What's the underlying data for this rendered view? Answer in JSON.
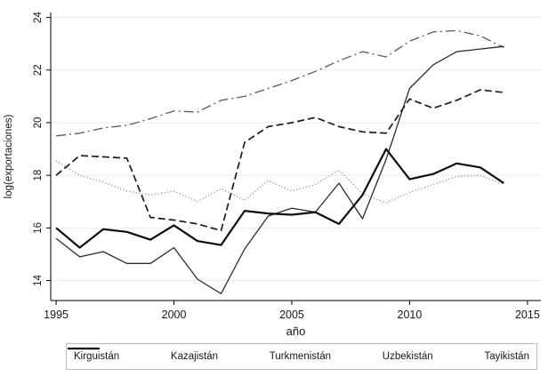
{
  "chart_data": {
    "type": "line",
    "title": "",
    "xlabel": "año",
    "ylabel": "log(exportaciones)",
    "x": [
      1995,
      1996,
      1997,
      1998,
      1999,
      2000,
      2001,
      2002,
      2003,
      2004,
      2005,
      2006,
      2007,
      2008,
      2009,
      2010,
      2011,
      2012,
      2013,
      2014
    ],
    "x_ticks": [
      1995,
      2000,
      2005,
      2010,
      2015
    ],
    "y_ticks": [
      14,
      16,
      18,
      20,
      22,
      24
    ],
    "x_range": [
      1994.77,
      2015.57
    ],
    "y_range": [
      13.24,
      24.19
    ],
    "grid": true,
    "legend_position": "bottom",
    "series": [
      {
        "name": "Kirguistán",
        "line": "dotted",
        "color": "#8c8c8c",
        "dash": "1 2.6",
        "width": 1.5,
        "values": [
          18.55,
          18.0,
          17.75,
          17.4,
          17.25,
          17.4,
          17.0,
          17.5,
          17.05,
          17.8,
          17.4,
          17.65,
          18.2,
          17.3,
          16.95,
          17.35,
          17.65,
          17.95,
          18.0,
          17.65
        ]
      },
      {
        "name": "Kazajistán",
        "line": "dash-dot",
        "color": "#5a5a5a",
        "dash": "11 4 2 4",
        "width": 1.3,
        "values": [
          19.5,
          19.6,
          19.8,
          19.9,
          20.15,
          20.45,
          20.4,
          20.85,
          21.0,
          21.3,
          21.6,
          21.95,
          22.35,
          22.7,
          22.5,
          23.1,
          23.45,
          23.5,
          23.3,
          22.85
        ]
      },
      {
        "name": "Turkmenistán",
        "line": "solid",
        "color": "#2b2b2b",
        "dash": "",
        "width": 1.3,
        "values": [
          15.6,
          14.9,
          15.1,
          14.65,
          14.65,
          15.25,
          14.05,
          13.5,
          15.2,
          16.45,
          16.75,
          16.6,
          17.7,
          16.35,
          18.6,
          21.3,
          22.2,
          22.7,
          22.8,
          22.9
        ]
      },
      {
        "name": "Uzbekistán",
        "line": "dashed",
        "color": "#1c1c1c",
        "dash": "8 4",
        "width": 1.7,
        "values": [
          18.0,
          18.75,
          18.7,
          18.65,
          16.4,
          16.3,
          16.15,
          15.9,
          19.25,
          19.85,
          20.0,
          20.2,
          19.85,
          19.65,
          19.6,
          20.9,
          20.55,
          20.85,
          21.25,
          21.15
        ]
      },
      {
        "name": "Tayikistán",
        "line": "solid-thick",
        "color": "#0d0d0d",
        "dash": "",
        "width": 2.2,
        "values": [
          16.0,
          15.25,
          15.95,
          15.85,
          15.55,
          16.1,
          15.5,
          15.35,
          16.65,
          16.55,
          16.5,
          16.6,
          16.15,
          17.25,
          19.0,
          17.85,
          18.05,
          18.45,
          18.3,
          17.7
        ]
      }
    ]
  },
  "legend": {
    "labels": [
      "Kirguistán",
      "Kazajistán",
      "Turkmenistán",
      "Uzbekistán",
      "Tayikistán"
    ]
  }
}
